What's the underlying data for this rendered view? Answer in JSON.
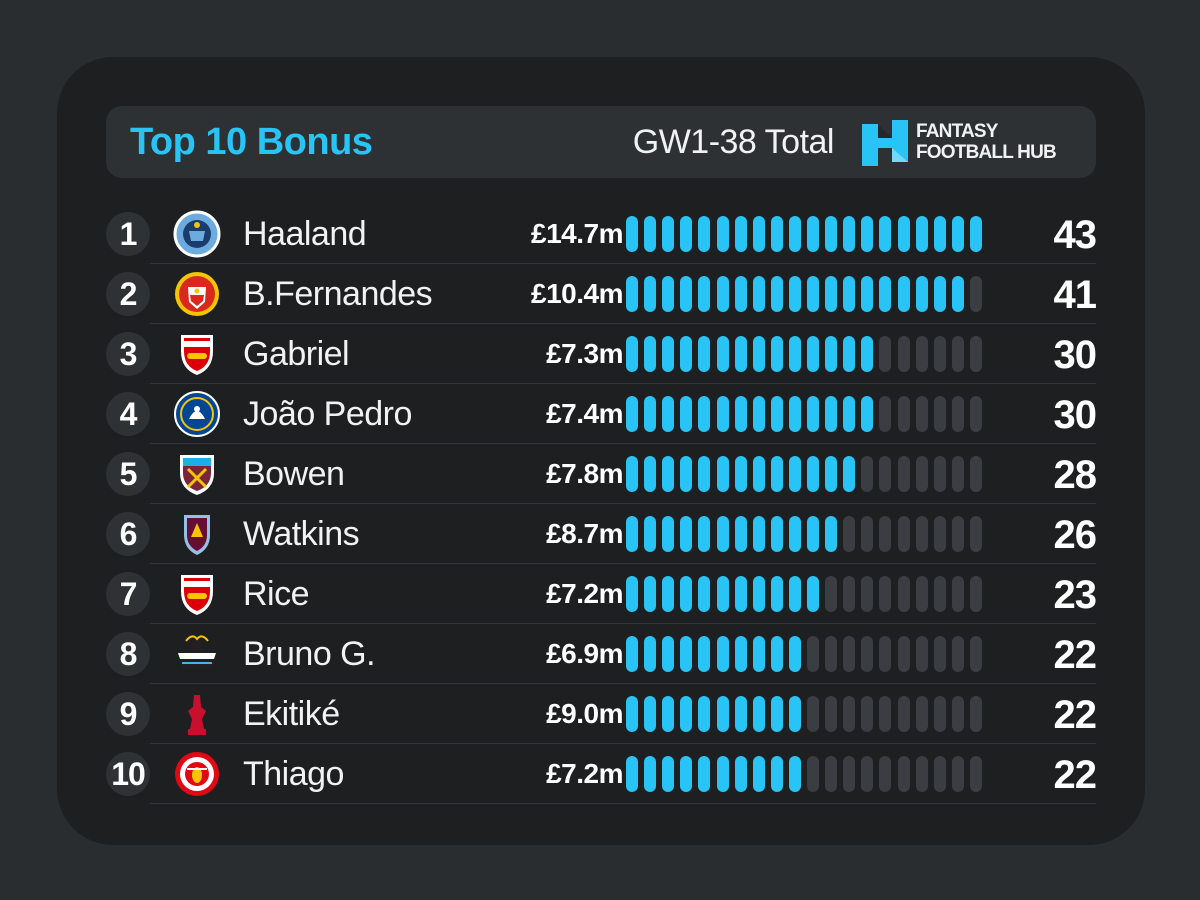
{
  "header": {
    "title": "Top 10 Bonus",
    "subtitle": "GW1-38 Total",
    "logo_line1": "FANTASY",
    "logo_line2": "FOOTBALL HUB"
  },
  "colors": {
    "accent": "#29c4f6",
    "bar_empty": "#3a3d41",
    "card": "#1d1f21",
    "background": "#2a2d30"
  },
  "chart_data": {
    "type": "bar",
    "title": "Top 10 Bonus",
    "subtitle": "GW1-38 Total",
    "max_segments": 20,
    "categories": [
      "Haaland",
      "B.Fernandes",
      "Gabriel",
      "João Pedro",
      "Bowen",
      "Watkins",
      "Rice",
      "Bruno G.",
      "Ekitiké",
      "Thiago"
    ],
    "values": [
      43,
      41,
      30,
      30,
      28,
      26,
      23,
      22,
      22,
      22
    ],
    "ranks": [
      "1",
      "2",
      "3",
      "4",
      "5",
      "6",
      "7",
      "8",
      "9",
      "10"
    ],
    "prices": [
      "£14.7m",
      "£10.4m",
      "£7.3m",
      "£7.4m",
      "£7.8m",
      "£8.7m",
      "£7.2m",
      "£6.9m",
      "£9.0m",
      "£7.2m"
    ],
    "crests": [
      "man-city-crest-icon",
      "man-utd-crest-icon",
      "arsenal-crest-icon",
      "chelsea-crest-icon",
      "west-ham-crest-icon",
      "aston-villa-crest-icon",
      "arsenal-crest-icon",
      "newcastle-crest-icon",
      "liverpool-crest-icon",
      "brentford-crest-icon"
    ]
  }
}
